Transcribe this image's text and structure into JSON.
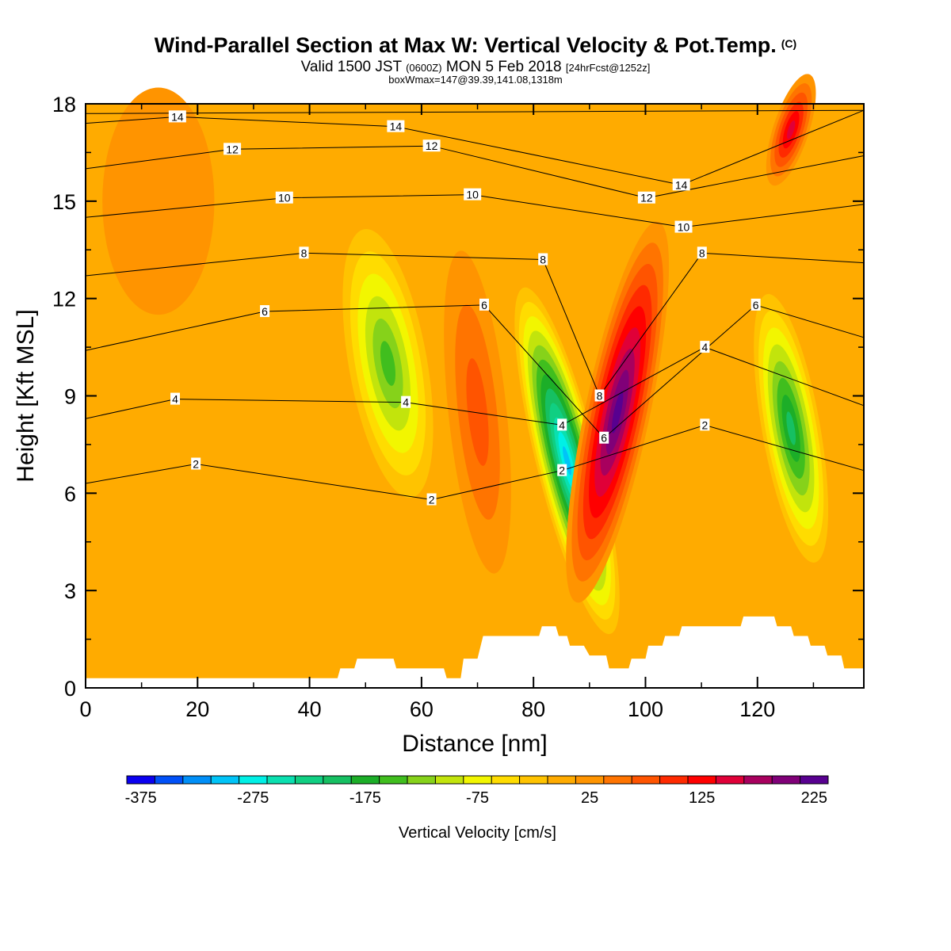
{
  "title": {
    "main": "Wind-Parallel Section at Max W: Vertical Velocity & Pot.Temp.",
    "copyright": "(C)",
    "valid_prefix": "Valid 1500 JST",
    "valid_utc": "(0600Z)",
    "valid_date": "MON 5 Feb 2018",
    "forecast": "[24hrFcst@1252z]",
    "box": "boxWmax=147@39.39,141.08,1318m"
  },
  "chart_data": {
    "type": "heatmap",
    "xlabel": "Distance [nm]",
    "ylabel": "Height [Kft MSL]",
    "xlim": [
      0,
      139
    ],
    "ylim": [
      0,
      18
    ],
    "x_ticks": [
      "0",
      "20",
      "40",
      "60",
      "80",
      "100",
      "120"
    ],
    "y_ticks": [
      "0",
      "3",
      "6",
      "9",
      "12",
      "15",
      "18"
    ],
    "colorbar": {
      "label": "Vertical Velocity [cm/s]",
      "min": -375,
      "max": 250,
      "step": 25,
      "tick_labels": [
        "-375",
        "-275",
        "-175",
        "-75",
        "25",
        "125",
        "225"
      ],
      "colors": [
        "#0a00f0",
        "#0050f8",
        "#008ff8",
        "#00c4f8",
        "#00f0e6",
        "#0ae0b0",
        "#10cf82",
        "#16c062",
        "#1cae28",
        "#40be1e",
        "#86d21a",
        "#c2e40c",
        "#f2f600",
        "#ffdc00",
        "#ffc300",
        "#ffab00",
        "#ff9400",
        "#ff7400",
        "#ff5400",
        "#ff2a00",
        "#ff0000",
        "#e00038",
        "#a8005e",
        "#800078",
        "#580090"
      ]
    },
    "w_features_cm_s": [
      {
        "x": 54,
        "z": 10.0,
        "w": -130
      },
      {
        "x": 70,
        "z": 8.5,
        "w": 75
      },
      {
        "x": 86,
        "z": 7.0,
        "w": -300
      },
      {
        "x": 95,
        "z": 8.5,
        "w": 240
      },
      {
        "x": 126,
        "z": 17.2,
        "w": 150
      },
      {
        "x": 126,
        "z": 8.0,
        "w": -185
      },
      {
        "x": 13,
        "z": 15.0,
        "w": 30
      }
    ],
    "theta_contour_labels": [
      {
        "label": "14",
        "x": 16.4,
        "z": 17.6
      },
      {
        "label": "14",
        "x": 55.4,
        "z": 17.3
      },
      {
        "label": "14",
        "x": 106.4,
        "z": 15.5
      },
      {
        "label": "12",
        "x": 26.2,
        "z": 16.6
      },
      {
        "label": "12",
        "x": 61.8,
        "z": 16.7
      },
      {
        "label": "12",
        "x": 100.2,
        "z": 15.1
      },
      {
        "label": "10",
        "x": 35.5,
        "z": 15.1
      },
      {
        "label": "10",
        "x": 69.1,
        "z": 15.2
      },
      {
        "label": "10",
        "x": 106.8,
        "z": 14.2
      },
      {
        "label": "8",
        "x": 39.0,
        "z": 13.4
      },
      {
        "label": "8",
        "x": 81.7,
        "z": 13.2
      },
      {
        "label": "8",
        "x": 110.1,
        "z": 13.4
      },
      {
        "label": "8",
        "x": 91.8,
        "z": 9.0
      },
      {
        "label": "6",
        "x": 32.0,
        "z": 11.6
      },
      {
        "label": "6",
        "x": 71.2,
        "z": 11.8
      },
      {
        "label": "6",
        "x": 119.7,
        "z": 11.8
      },
      {
        "label": "6",
        "x": 92.6,
        "z": 7.7
      },
      {
        "label": "4",
        "x": 16.0,
        "z": 8.9
      },
      {
        "label": "4",
        "x": 57.2,
        "z": 8.8
      },
      {
        "label": "4",
        "x": 85.1,
        "z": 8.1
      },
      {
        "label": "4",
        "x": 110.6,
        "z": 10.5
      },
      {
        "label": "2",
        "x": 19.7,
        "z": 6.9
      },
      {
        "label": "2",
        "x": 61.8,
        "z": 5.8
      },
      {
        "label": "2",
        "x": 85.1,
        "z": 6.7
      },
      {
        "label": "2",
        "x": 110.6,
        "z": 8.1
      }
    ],
    "terrain_kft": [
      [
        0,
        0.3
      ],
      [
        45,
        0.3
      ],
      [
        45.5,
        0.6
      ],
      [
        48,
        0.6
      ],
      [
        48.5,
        0.9
      ],
      [
        55,
        0.9
      ],
      [
        55.5,
        0.6
      ],
      [
        64,
        0.6
      ],
      [
        64.5,
        0.3
      ],
      [
        67,
        0.3
      ],
      [
        67.5,
        0.9
      ],
      [
        70,
        0.9
      ],
      [
        71,
        1.6
      ],
      [
        81,
        1.6
      ],
      [
        81.5,
        1.9
      ],
      [
        84,
        1.9
      ],
      [
        84.5,
        1.6
      ],
      [
        86,
        1.6
      ],
      [
        86.5,
        1.3
      ],
      [
        89,
        1.3
      ],
      [
        90,
        1.0
      ],
      [
        93,
        1.0
      ],
      [
        93.5,
        0.6
      ],
      [
        97,
        0.6
      ],
      [
        97.5,
        0.9
      ],
      [
        100,
        0.9
      ],
      [
        100.5,
        1.3
      ],
      [
        103,
        1.3
      ],
      [
        103.5,
        1.6
      ],
      [
        106,
        1.6
      ],
      [
        106.5,
        1.9
      ],
      [
        117,
        1.9
      ],
      [
        117.5,
        2.2
      ],
      [
        123,
        2.2
      ],
      [
        123.5,
        1.9
      ],
      [
        126,
        1.9
      ],
      [
        126.5,
        1.6
      ],
      [
        129,
        1.6
      ],
      [
        129.5,
        1.3
      ],
      [
        132,
        1.3
      ],
      [
        132.5,
        1.0
      ],
      [
        135,
        1.0
      ],
      [
        135.5,
        0.6
      ],
      [
        139,
        0.6
      ]
    ]
  }
}
